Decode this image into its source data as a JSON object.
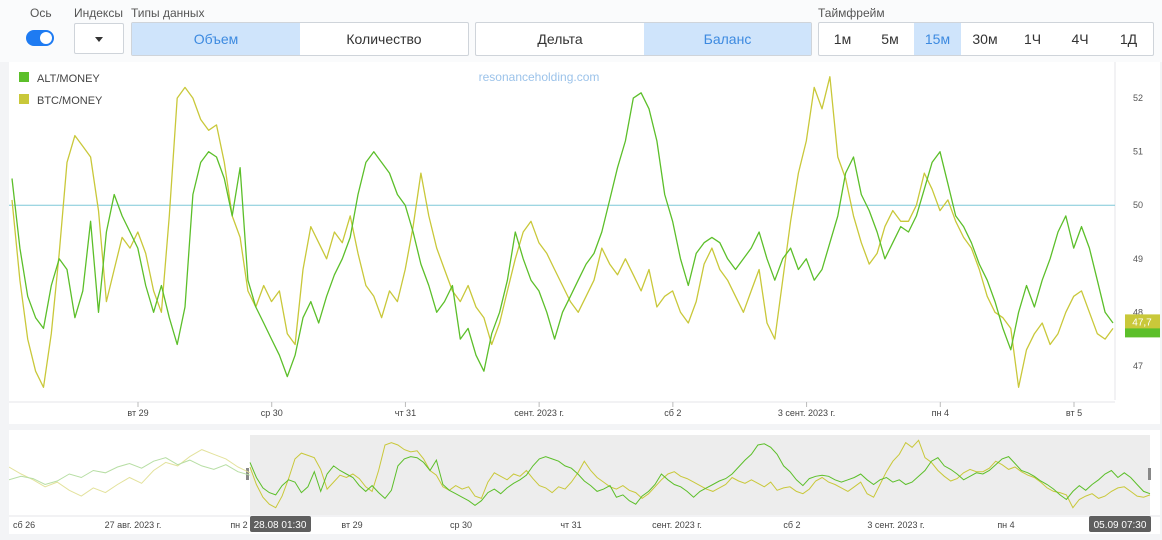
{
  "toolbar": {
    "axis_label": "Ось",
    "indices_label": "Индексы",
    "types_label": "Типы данных",
    "timeframe_label": "Таймфрейм",
    "data_types": [
      {
        "label": "Объем",
        "active": true
      },
      {
        "label": "Количество",
        "active": false
      }
    ],
    "modes": [
      {
        "label": "Дельта",
        "active": false
      },
      {
        "label": "Баланс",
        "active": true
      }
    ],
    "timeframes": [
      {
        "label": "1м",
        "active": false
      },
      {
        "label": "5м",
        "active": false
      },
      {
        "label": "15м",
        "active": true
      },
      {
        "label": "30м",
        "active": false
      },
      {
        "label": "1Ч",
        "active": false
      },
      {
        "label": "4Ч",
        "active": false
      },
      {
        "label": "1Д",
        "active": false
      }
    ]
  },
  "chart_data": {
    "type": "line",
    "watermark": "resonanceholding.com",
    "x_ticks": [
      "вт 29",
      "ср 30",
      "чт 31",
      "сент. 2023 г.",
      "сб 2",
      "3 сент. 2023 г.",
      "пн 4",
      "вт 5"
    ],
    "y_ticks": [
      "52",
      "51",
      "50",
      "49",
      "48",
      "47"
    ],
    "ylim": [
      46.4,
      52.6
    ],
    "reference_line": 50,
    "last_value_label": "47,7",
    "legend_position": "top-left",
    "series": [
      {
        "name": "ALT/MONEY",
        "color": "#5cbf2a",
        "values": [
          50.5,
          49.2,
          48.3,
          47.9,
          47.7,
          48.5,
          49.0,
          48.8,
          47.9,
          48.4,
          49.7,
          48.0,
          49.5,
          50.2,
          49.8,
          49.5,
          49.2,
          48.5,
          48.0,
          48.5,
          47.9,
          47.4,
          48.1,
          50.2,
          50.8,
          51.0,
          50.9,
          50.5,
          49.8,
          50.7,
          48.6,
          48.1,
          47.8,
          47.5,
          47.2,
          46.8,
          47.2,
          47.9,
          48.2,
          47.8,
          48.3,
          48.7,
          49.0,
          49.4,
          50.2,
          50.8,
          51.0,
          50.8,
          50.6,
          50.2,
          50.0,
          49.5,
          48.9,
          48.5,
          48.0,
          48.2,
          48.5,
          47.5,
          47.7,
          47.2,
          46.9,
          47.6,
          48.0,
          48.6,
          49.5,
          49.0,
          48.6,
          48.4,
          48.0,
          47.5,
          48.0,
          48.3,
          48.6,
          48.9,
          49.1,
          49.5,
          50.1,
          50.7,
          51.2,
          52.0,
          52.1,
          51.8,
          51.2,
          50.2,
          49.7,
          49.0,
          48.5,
          49.1,
          49.3,
          49.4,
          49.3,
          49.0,
          48.8,
          49.0,
          49.2,
          49.5,
          49.0,
          48.6,
          49.0,
          49.2,
          48.8,
          49.0,
          48.6,
          48.8,
          49.3,
          49.8,
          50.6,
          50.9,
          50.2,
          49.9,
          49.5,
          49.0,
          49.3,
          49.6,
          49.5,
          49.8,
          50.3,
          50.8,
          51.0,
          50.4,
          49.8,
          49.6,
          49.3,
          48.9,
          48.6,
          48.2,
          47.7,
          47.3,
          48.0,
          48.5,
          48.1,
          48.6,
          49.0,
          49.5,
          49.8,
          49.2,
          49.6,
          49.2,
          48.6,
          48.0,
          47.8
        ]
      },
      {
        "name": "BTC/MONEY",
        "color": "#c9c83a",
        "values": [
          50.1,
          48.6,
          47.5,
          46.9,
          46.6,
          47.6,
          49.1,
          50.8,
          51.3,
          51.1,
          50.9,
          49.9,
          48.2,
          48.8,
          49.4,
          49.2,
          49.5,
          49.1,
          48.4,
          48.0,
          49.8,
          52.0,
          52.2,
          52.0,
          51.6,
          51.4,
          51.5,
          50.8,
          49.8,
          49.4,
          48.4,
          48.1,
          48.5,
          48.2,
          48.4,
          47.6,
          47.4,
          48.8,
          49.6,
          49.3,
          49.0,
          49.5,
          49.3,
          49.8,
          49.1,
          48.5,
          48.3,
          47.9,
          48.4,
          48.2,
          48.8,
          49.6,
          50.6,
          49.8,
          49.2,
          48.8,
          48.4,
          48.2,
          48.5,
          48.1,
          47.9,
          47.4,
          47.8,
          48.4,
          49.0,
          49.5,
          49.7,
          49.3,
          49.1,
          48.8,
          48.5,
          48.2,
          48.0,
          48.3,
          48.6,
          49.2,
          48.9,
          48.7,
          49.0,
          48.7,
          48.4,
          48.8,
          48.1,
          48.3,
          48.4,
          48.0,
          47.8,
          48.2,
          48.9,
          49.2,
          48.8,
          48.6,
          48.3,
          48.0,
          48.4,
          48.8,
          47.8,
          47.5,
          48.6,
          49.7,
          50.6,
          51.2,
          52.2,
          51.8,
          52.4,
          50.9,
          50.5,
          49.8,
          49.3,
          48.9,
          49.1,
          49.6,
          49.9,
          49.7,
          49.7,
          50.0,
          50.6,
          50.3,
          49.9,
          50.1,
          49.7,
          49.4,
          49.2,
          48.8,
          48.3,
          48.0,
          47.9,
          47.7,
          46.6,
          47.3,
          47.6,
          47.8,
          47.4,
          47.6,
          48.0,
          48.3,
          48.4,
          48.0,
          47.6,
          47.5,
          47.7
        ]
      }
    ],
    "navigator": {
      "x_ticks": [
        "сб 26",
        "27 авг. 2023 г.",
        "пн 2",
        "вт 29",
        "ср 30",
        "чт 31",
        "сент. 2023 г.",
        "сб 2",
        "3 сент. 2023 г.",
        "пн 4"
      ],
      "start_label": "28.08 01:30",
      "end_label": "05.09 07:30",
      "pre_alt": [
        49.0,
        49.3,
        49.1,
        48.6,
        48.9,
        49.5,
        49.2,
        49.8,
        49.6,
        50.1,
        50.4,
        50.0,
        50.6,
        50.9,
        50.3,
        50.7,
        50.2,
        49.9,
        50.3,
        49.7,
        49.4
      ],
      "pre_btc": [
        50.1,
        49.5,
        49.0,
        48.4,
        48.8,
        48.1,
        47.6,
        48.3,
        47.9,
        48.6,
        49.2,
        48.7,
        49.8,
        50.5,
        50.2,
        51.0,
        51.6,
        51.2,
        50.8,
        50.1,
        49.6
      ]
    }
  }
}
